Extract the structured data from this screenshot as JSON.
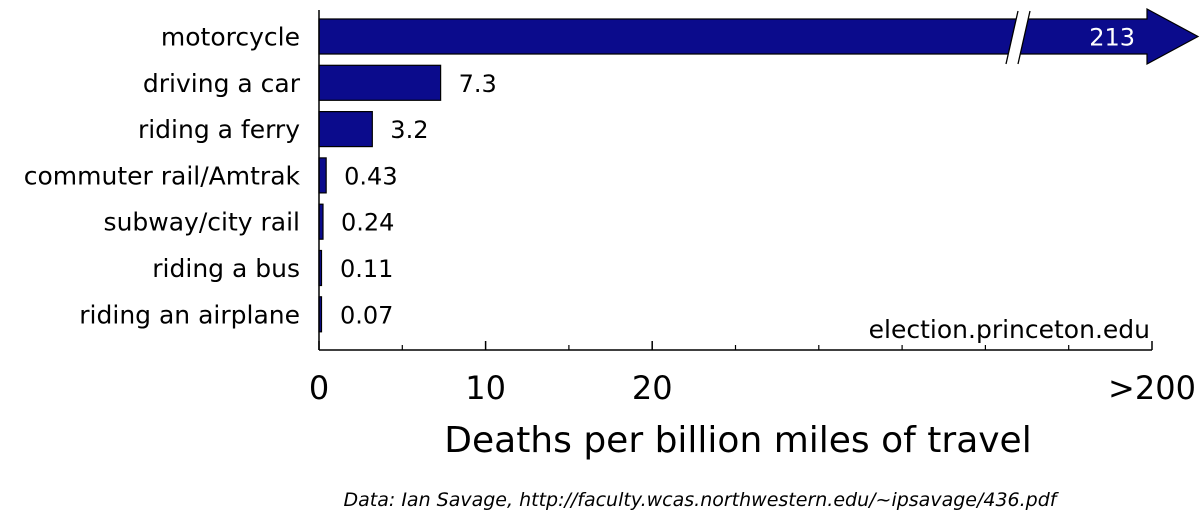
{
  "chart_data": {
    "type": "bar",
    "orientation": "horizontal",
    "categories": [
      "motorcycle",
      "driving a car",
      "riding a ferry",
      "commuter rail/Amtrak",
      "subway/city rail",
      "riding a bus",
      "riding an airplane"
    ],
    "values": [
      213,
      7.3,
      3.2,
      0.43,
      0.24,
      0.11,
      0.07
    ],
    "value_labels": [
      "213",
      "7.3",
      "3.2",
      "0.43",
      "0.24",
      "0.11",
      "0.07"
    ],
    "xlabel": "Deaths per billion miles of travel",
    "ylabel": "",
    "xlim": [
      0,
      50
    ],
    "axis_break": true,
    "x_tick_labels": [
      {
        "value": 0,
        "label": "0"
      },
      {
        "value": 10,
        "label": "10"
      },
      {
        "value": 20,
        "label": "20"
      },
      {
        "value": 50,
        "label": ">200"
      }
    ],
    "x_minor_ticks": [
      5,
      15,
      25,
      30,
      35,
      40,
      45
    ],
    "bar_color": "#0b0b8c",
    "grid": false
  },
  "watermark": "election.princeton.edu",
  "source": "Data: Ian Savage, http://faculty.wcas.northwestern.edu/~ipsavage/436.pdf"
}
